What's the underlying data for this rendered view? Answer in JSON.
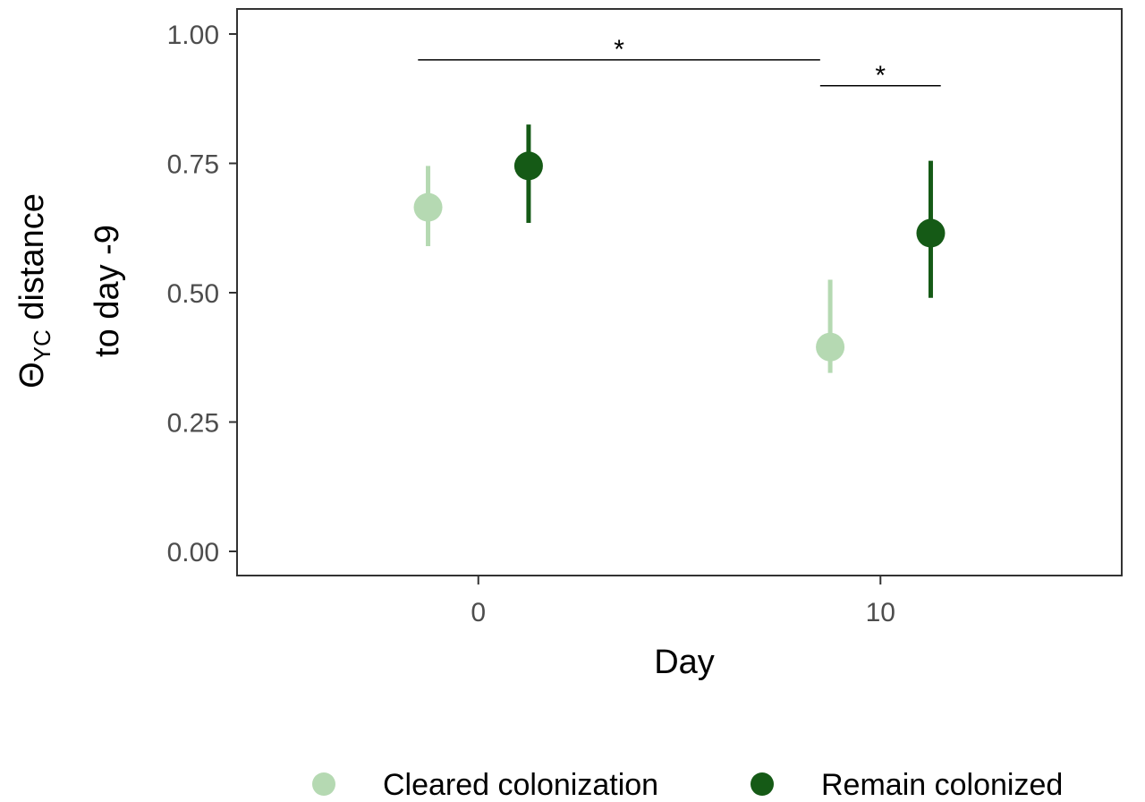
{
  "chart_data": {
    "type": "scatter",
    "subtype": "point-range",
    "xlabel": "Day",
    "ylabel_line1_prefix": "Θ",
    "ylabel_line1_subscript": "YC",
    "ylabel_line1_suffix": " distance",
    "ylabel_line2": "to day -9",
    "xlim": [
      -6,
      16
    ],
    "ylim": [
      0,
      1
    ],
    "x_ticks": [
      0,
      10
    ],
    "x_tick_labels": [
      "0",
      "10"
    ],
    "y_ticks": [
      0,
      0.25,
      0.5,
      0.75,
      1.0
    ],
    "y_tick_labels": [
      "0.00",
      "0.25",
      "0.50",
      "0.75",
      "1.00"
    ],
    "grid": false,
    "legend_position": "bottom",
    "series": [
      {
        "name": "Cleared colonization",
        "color": "#b5d9b2",
        "dodge": -1.25,
        "points": [
          {
            "x": 0,
            "y": 0.665,
            "ymin": 0.59,
            "ymax": 0.745
          },
          {
            "x": 10,
            "y": 0.395,
            "ymin": 0.345,
            "ymax": 0.525
          }
        ]
      },
      {
        "name": "Remain colonized",
        "color": "#155a16",
        "dodge": 1.25,
        "points": [
          {
            "x": 0,
            "y": 0.745,
            "ymin": 0.635,
            "ymax": 0.825
          },
          {
            "x": 10,
            "y": 0.615,
            "ymin": 0.49,
            "ymax": 0.755
          }
        ]
      }
    ],
    "annotations": [
      {
        "label": "*",
        "x_start": -1.5,
        "x_end": 8.5,
        "y": 0.95
      },
      {
        "label": "*",
        "x_start": 8.5,
        "x_end": 11.5,
        "y": 0.9
      }
    ]
  }
}
